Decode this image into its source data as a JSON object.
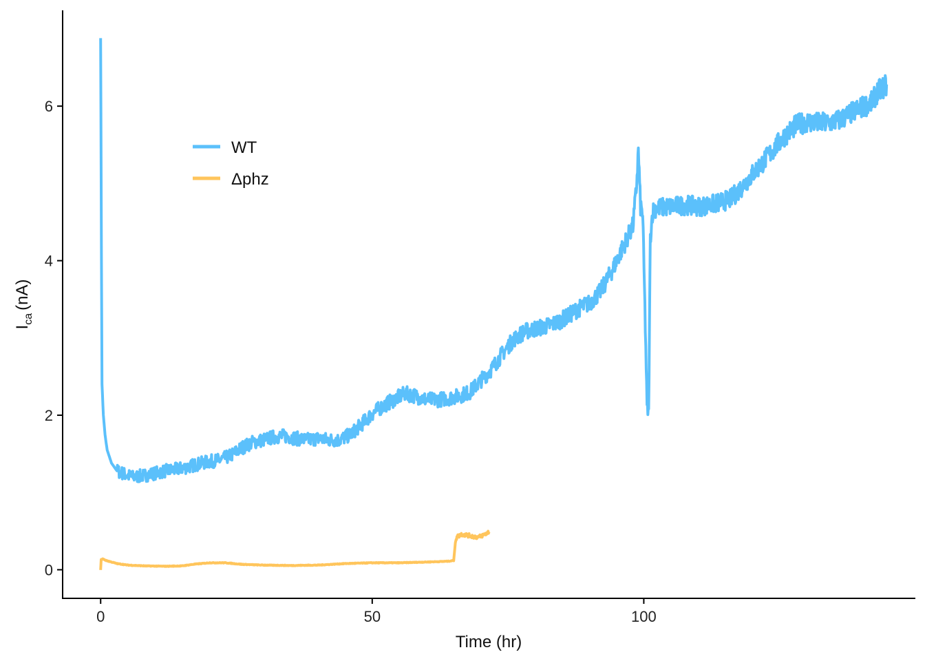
{
  "chart_data": {
    "type": "line",
    "xlabel": "Time (hr)",
    "ylabel": {
      "main": "I",
      "sub": "ca",
      "unit": "(nA)"
    },
    "xlim": [
      -7,
      150
    ],
    "ylim": [
      -0.37,
      7.24
    ],
    "x_ticks": [
      0,
      50,
      100
    ],
    "y_ticks": [
      0,
      2,
      4,
      6
    ],
    "grid": false,
    "legend": {
      "position": "top-left",
      "entries": [
        "WT",
        "Δphz"
      ]
    },
    "series": [
      {
        "name": "WT",
        "color": "#5BC0FB",
        "points": [
          [
            0,
            6.88
          ],
          [
            0.05,
            6.0
          ],
          [
            0.15,
            4.0
          ],
          [
            0.25,
            2.4
          ],
          [
            0.5,
            2.0
          ],
          [
            0.8,
            1.75
          ],
          [
            1.2,
            1.55
          ],
          [
            2,
            1.38
          ],
          [
            3,
            1.28
          ],
          [
            4,
            1.25
          ],
          [
            5,
            1.22
          ],
          [
            6,
            1.2
          ],
          [
            8,
            1.22
          ],
          [
            10,
            1.25
          ],
          [
            12,
            1.28
          ],
          [
            14,
            1.3
          ],
          [
            16,
            1.33
          ],
          [
            18,
            1.37
          ],
          [
            20,
            1.4
          ],
          [
            22,
            1.42
          ],
          [
            24,
            1.48
          ],
          [
            26,
            1.58
          ],
          [
            28,
            1.65
          ],
          [
            30,
            1.68
          ],
          [
            32,
            1.72
          ],
          [
            34,
            1.73
          ],
          [
            36,
            1.7
          ],
          [
            38,
            1.68
          ],
          [
            40,
            1.7
          ],
          [
            42,
            1.68
          ],
          [
            44,
            1.68
          ],
          [
            46,
            1.75
          ],
          [
            48,
            1.88
          ],
          [
            50,
            2.02
          ],
          [
            52,
            2.12
          ],
          [
            54,
            2.2
          ],
          [
            56,
            2.28
          ],
          [
            58,
            2.25
          ],
          [
            60,
            2.2
          ],
          [
            62,
            2.2
          ],
          [
            64,
            2.22
          ],
          [
            66,
            2.25
          ],
          [
            68,
            2.3
          ],
          [
            70,
            2.45
          ],
          [
            72,
            2.6
          ],
          [
            74,
            2.8
          ],
          [
            76,
            2.98
          ],
          [
            78,
            3.08
          ],
          [
            80,
            3.12
          ],
          [
            82,
            3.15
          ],
          [
            84,
            3.2
          ],
          [
            86,
            3.28
          ],
          [
            88,
            3.38
          ],
          [
            90,
            3.45
          ],
          [
            92,
            3.6
          ],
          [
            94,
            3.85
          ],
          [
            96,
            4.15
          ],
          [
            98,
            4.45
          ],
          [
            98.6,
            4.9
          ],
          [
            99,
            5.42
          ],
          [
            99.4,
            4.7
          ],
          [
            99.8,
            4.6
          ],
          [
            100.2,
            3.4
          ],
          [
            100.6,
            2.1
          ],
          [
            100.9,
            2.02
          ],
          [
            101.2,
            4.3
          ],
          [
            101.6,
            4.62
          ],
          [
            102,
            4.68
          ],
          [
            105,
            4.7
          ],
          [
            108,
            4.72
          ],
          [
            110,
            4.7
          ],
          [
            112,
            4.72
          ],
          [
            114,
            4.75
          ],
          [
            116,
            4.8
          ],
          [
            118,
            4.95
          ],
          [
            120,
            5.12
          ],
          [
            122,
            5.28
          ],
          [
            124,
            5.45
          ],
          [
            126,
            5.62
          ],
          [
            128,
            5.75
          ],
          [
            130,
            5.8
          ],
          [
            132,
            5.78
          ],
          [
            134,
            5.78
          ],
          [
            136,
            5.82
          ],
          [
            138,
            5.9
          ],
          [
            140,
            5.98
          ],
          [
            142,
            6.05
          ],
          [
            143,
            6.18
          ],
          [
            144.7,
            6.28
          ]
        ]
      },
      {
        "name": "Δphz",
        "color": "#FFC55C",
        "points": [
          [
            0,
            0.0
          ],
          [
            0.1,
            0.13
          ],
          [
            0.4,
            0.14
          ],
          [
            1,
            0.12
          ],
          [
            3,
            0.08
          ],
          [
            5,
            0.06
          ],
          [
            8,
            0.05
          ],
          [
            12,
            0.045
          ],
          [
            15,
            0.05
          ],
          [
            17,
            0.07
          ],
          [
            20,
            0.09
          ],
          [
            23,
            0.09
          ],
          [
            26,
            0.07
          ],
          [
            30,
            0.06
          ],
          [
            35,
            0.055
          ],
          [
            40,
            0.06
          ],
          [
            45,
            0.08
          ],
          [
            50,
            0.09
          ],
          [
            55,
            0.09
          ],
          [
            60,
            0.1
          ],
          [
            64,
            0.11
          ],
          [
            65,
            0.12
          ],
          [
            65.3,
            0.35
          ],
          [
            65.6,
            0.43
          ],
          [
            66.5,
            0.46
          ],
          [
            68,
            0.44
          ],
          [
            69.5,
            0.42
          ],
          [
            70.5,
            0.45
          ],
          [
            71.5,
            0.49
          ]
        ]
      }
    ]
  }
}
